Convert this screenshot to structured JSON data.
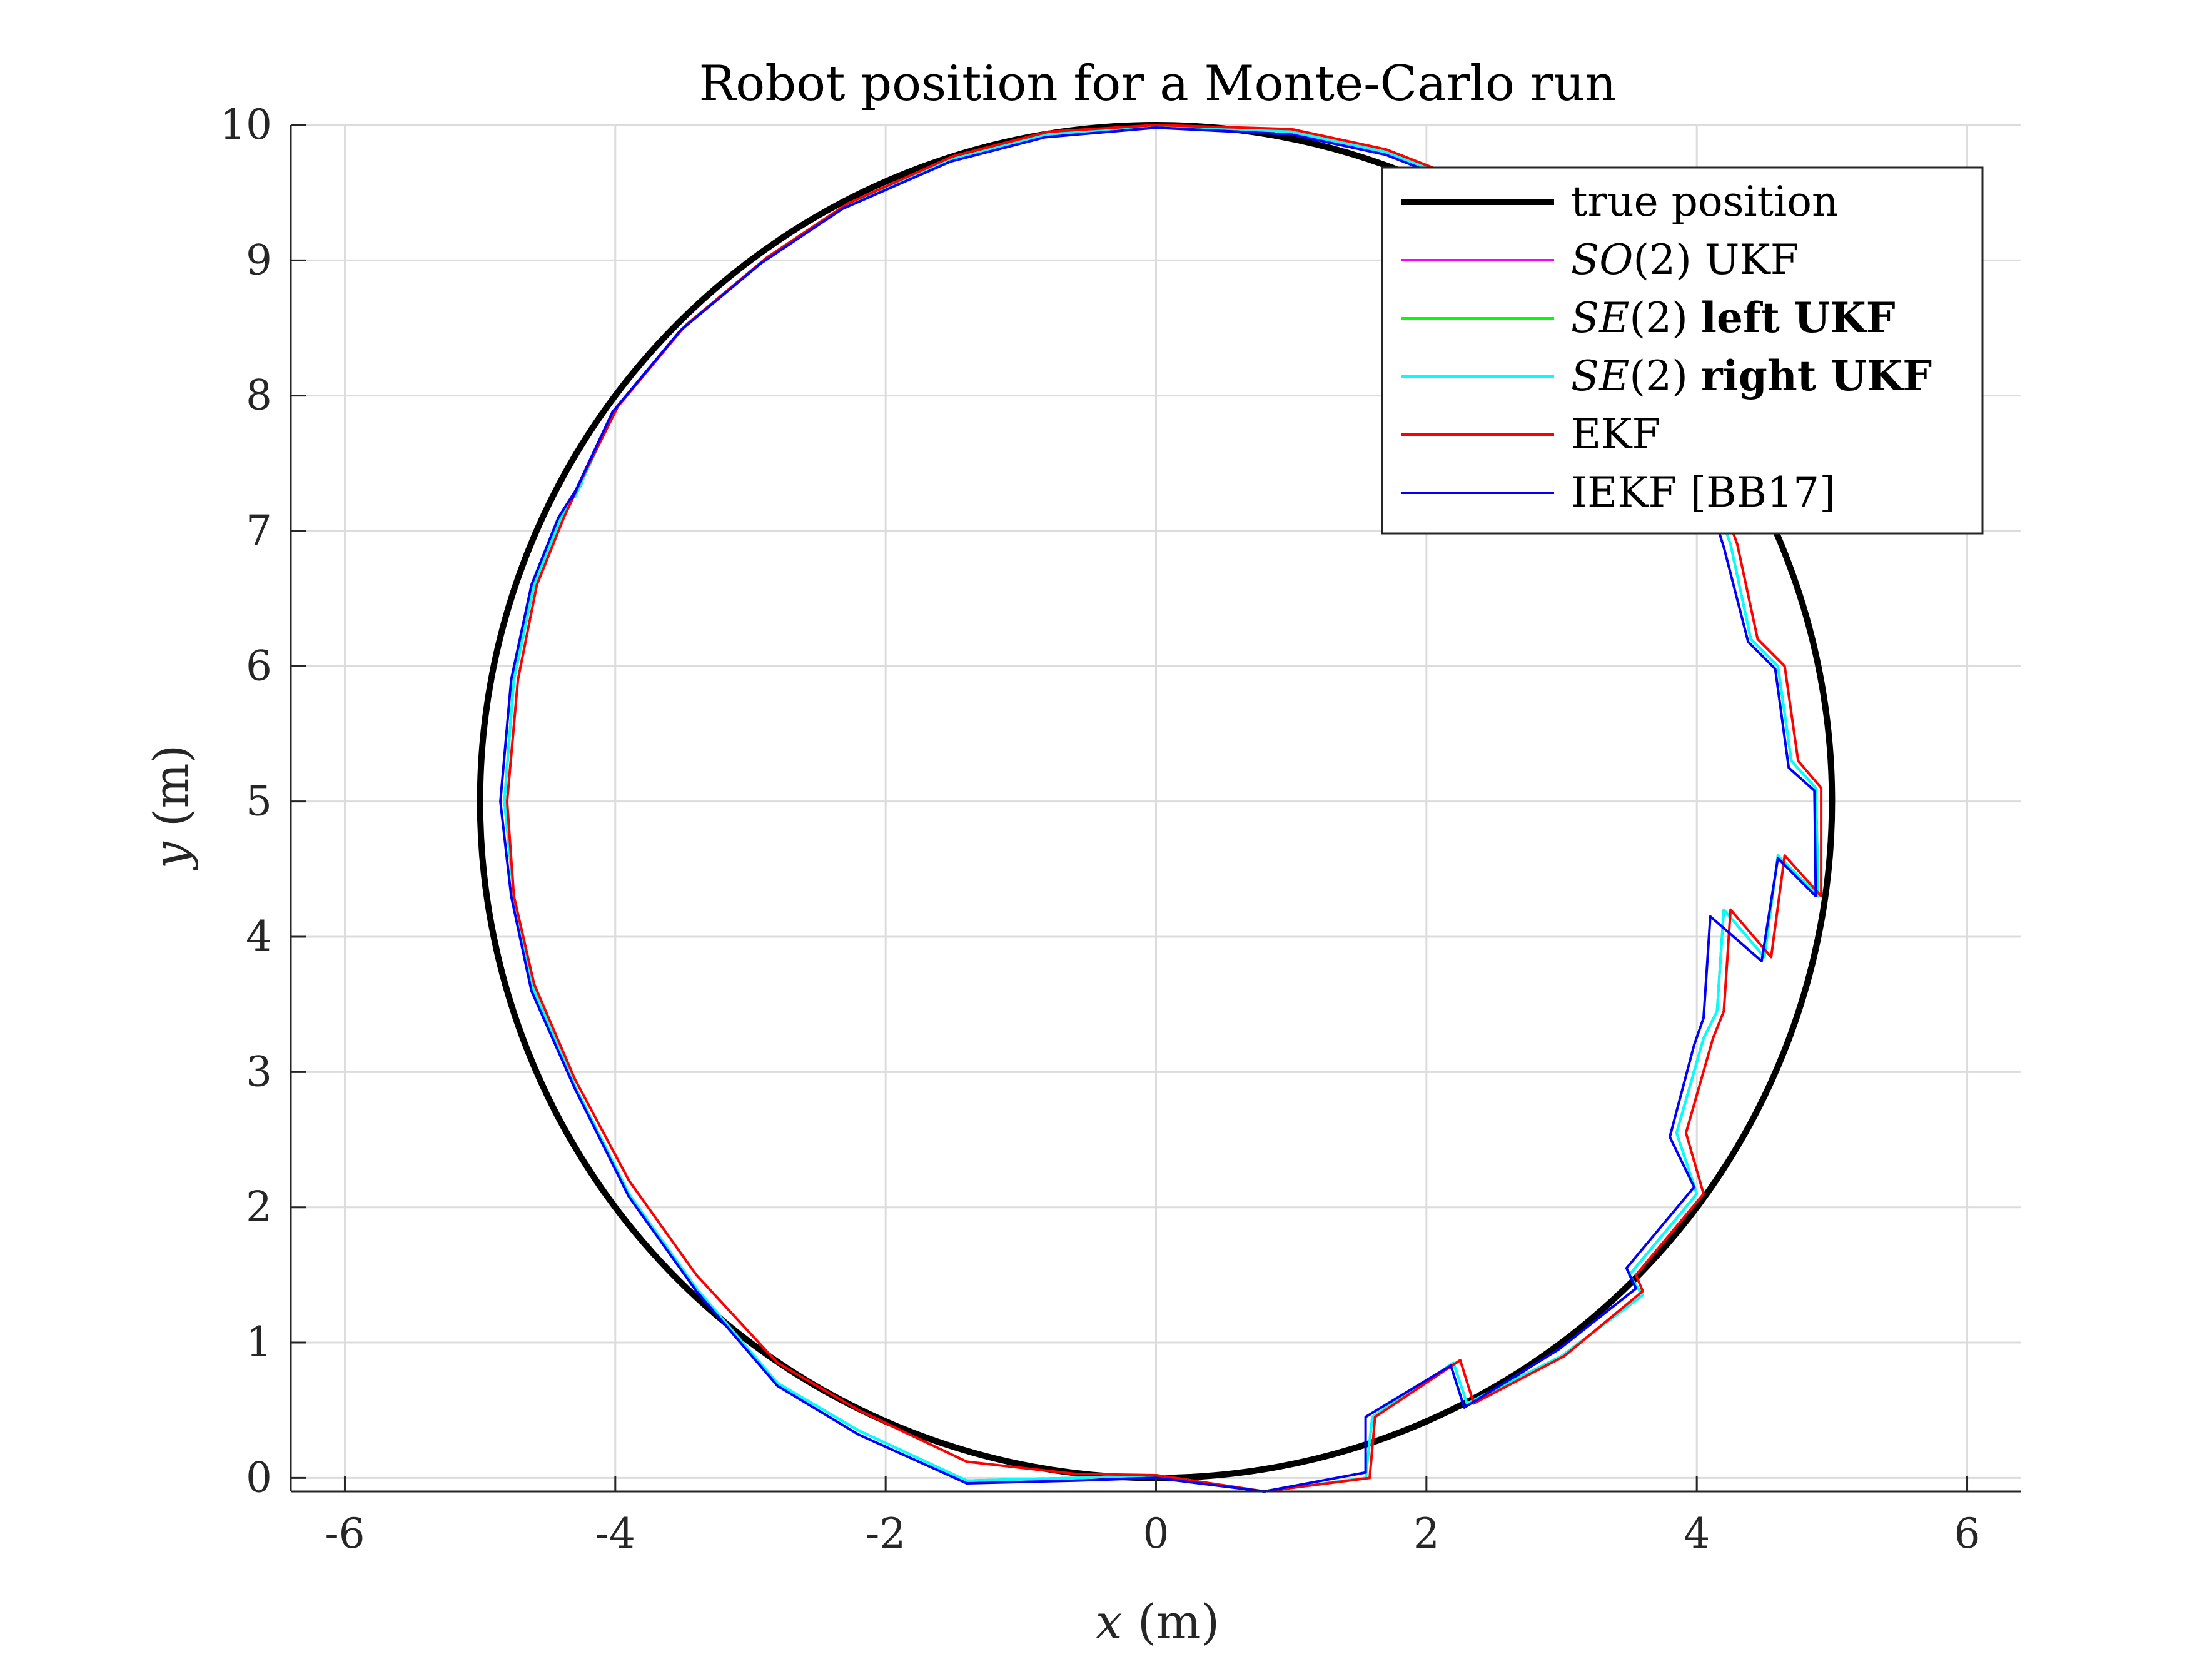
{
  "chart_data": {
    "type": "line",
    "title": "Robot position for a Monte-Carlo run",
    "xlabel": {
      "var": "x",
      "unit": " (m)"
    },
    "ylabel": {
      "var": "y",
      "unit": " (m)"
    },
    "xlim": [
      -6.4,
      6.4
    ],
    "ylim": [
      -0.1,
      10.0
    ],
    "xticks": [
      -6,
      -4,
      -2,
      0,
      2,
      4,
      6
    ],
    "yticks": [
      0,
      1,
      2,
      3,
      4,
      5,
      6,
      7,
      8,
      9,
      10
    ],
    "grid": true,
    "legend_position": "top-right",
    "series": [
      {
        "name": "true position",
        "legend": [
          {
            "text": "true position",
            "style": "normal"
          }
        ],
        "color": "#000000",
        "kind": "circle",
        "center": [
          0,
          5
        ],
        "radius": 5
      },
      {
        "name": "SO(2) UKF",
        "legend": [
          {
            "text": "SO",
            "style": "italic"
          },
          {
            "text": "(2) UKF",
            "style": "normal"
          }
        ],
        "color": "#ff00ff",
        "kind": "path",
        "points": [
          [
            0.0,
            0.02
          ],
          [
            -0.6,
            0.0
          ],
          [
            -1.4,
            -0.02
          ],
          [
            -2.2,
            0.35
          ],
          [
            -2.8,
            0.7
          ],
          [
            -3.4,
            1.4
          ],
          [
            -3.9,
            2.1
          ],
          [
            -4.3,
            2.9
          ],
          [
            -4.6,
            3.6
          ],
          [
            -4.75,
            4.3
          ],
          [
            -4.82,
            5.0
          ],
          [
            -4.75,
            5.9
          ],
          [
            -4.6,
            6.6
          ],
          [
            -4.4,
            7.1
          ],
          [
            -4.25,
            7.35
          ],
          [
            -4.3,
            7.25
          ],
          [
            -4.0,
            7.9
          ],
          [
            -3.5,
            8.5
          ],
          [
            -2.9,
            9.0
          ],
          [
            -2.3,
            9.4
          ],
          [
            -1.5,
            9.75
          ],
          [
            -0.8,
            9.93
          ],
          [
            0.0,
            10.0
          ],
          [
            1.0,
            9.95
          ],
          [
            1.7,
            9.8
          ],
          [
            3.5,
            9.1
          ],
          [
            4.25,
            6.9
          ],
          [
            4.4,
            6.2
          ],
          [
            4.6,
            6.0
          ],
          [
            4.7,
            5.3
          ],
          [
            4.88,
            5.1
          ],
          [
            4.9,
            4.3
          ],
          [
            4.6,
            4.6
          ],
          [
            4.5,
            3.85
          ],
          [
            4.2,
            4.2
          ],
          [
            4.15,
            3.45
          ],
          [
            4.05,
            3.25
          ],
          [
            3.85,
            2.55
          ],
          [
            4.0,
            2.1
          ],
          [
            3.5,
            1.5
          ],
          [
            3.6,
            1.35
          ],
          [
            3.0,
            0.9
          ],
          [
            2.3,
            0.55
          ],
          [
            2.2,
            0.85
          ],
          [
            1.6,
            0.45
          ],
          [
            1.55,
            0.0
          ],
          [
            0.8,
            -0.1
          ],
          [
            0.0,
            0.02
          ]
        ]
      },
      {
        "name": "SE(2) left UKF",
        "legend": [
          {
            "text": "SE",
            "style": "italic"
          },
          {
            "text": "(2) ",
            "style": "normal"
          },
          {
            "text": "left UKF",
            "style": "bold"
          }
        ],
        "color": "#00ff00",
        "kind": "path",
        "points": [
          [
            0.0,
            0.02
          ],
          [
            -0.6,
            0.0
          ],
          [
            -1.4,
            -0.02
          ],
          [
            -2.2,
            0.35
          ],
          [
            -2.8,
            0.7
          ],
          [
            -3.4,
            1.4
          ],
          [
            -3.9,
            2.1
          ],
          [
            -4.3,
            2.9
          ],
          [
            -4.6,
            3.6
          ],
          [
            -4.75,
            4.3
          ],
          [
            -4.82,
            5.0
          ],
          [
            -4.75,
            5.9
          ],
          [
            -4.6,
            6.6
          ],
          [
            -4.4,
            7.1
          ],
          [
            -4.25,
            7.35
          ],
          [
            -4.3,
            7.25
          ],
          [
            -4.0,
            7.9
          ],
          [
            -3.5,
            8.5
          ],
          [
            -2.9,
            9.0
          ],
          [
            -2.3,
            9.4
          ],
          [
            -1.5,
            9.75
          ],
          [
            -0.8,
            9.93
          ],
          [
            0.0,
            10.0
          ],
          [
            1.0,
            9.95
          ],
          [
            1.7,
            9.8
          ],
          [
            3.5,
            9.1
          ],
          [
            4.25,
            6.9
          ],
          [
            4.4,
            6.2
          ],
          [
            4.6,
            6.0
          ],
          [
            4.7,
            5.3
          ],
          [
            4.88,
            5.1
          ],
          [
            4.9,
            4.3
          ],
          [
            4.6,
            4.6
          ],
          [
            4.5,
            3.85
          ],
          [
            4.2,
            4.2
          ],
          [
            4.15,
            3.45
          ],
          [
            4.05,
            3.25
          ],
          [
            3.85,
            2.55
          ],
          [
            4.0,
            2.1
          ],
          [
            3.5,
            1.5
          ],
          [
            3.6,
            1.35
          ],
          [
            3.0,
            0.9
          ],
          [
            2.3,
            0.55
          ],
          [
            2.2,
            0.85
          ],
          [
            1.6,
            0.45
          ],
          [
            1.55,
            0.0
          ],
          [
            0.8,
            -0.1
          ],
          [
            0.0,
            0.02
          ]
        ]
      },
      {
        "name": "SE(2) right UKF",
        "legend": [
          {
            "text": "SE",
            "style": "italic"
          },
          {
            "text": "(2) ",
            "style": "normal"
          },
          {
            "text": "right UKF",
            "style": "bold"
          }
        ],
        "color": "#00ffff",
        "kind": "path",
        "points": [
          [
            0.0,
            0.02
          ],
          [
            -0.6,
            0.0
          ],
          [
            -1.4,
            -0.02
          ],
          [
            -2.2,
            0.35
          ],
          [
            -2.8,
            0.7
          ],
          [
            -3.4,
            1.4
          ],
          [
            -3.9,
            2.1
          ],
          [
            -4.3,
            2.9
          ],
          [
            -4.6,
            3.6
          ],
          [
            -4.75,
            4.3
          ],
          [
            -4.82,
            5.0
          ],
          [
            -4.75,
            5.9
          ],
          [
            -4.6,
            6.6
          ],
          [
            -4.4,
            7.1
          ],
          [
            -4.25,
            7.35
          ],
          [
            -4.3,
            7.25
          ],
          [
            -4.0,
            7.9
          ],
          [
            -3.5,
            8.5
          ],
          [
            -2.9,
            9.0
          ],
          [
            -2.3,
            9.4
          ],
          [
            -1.5,
            9.75
          ],
          [
            -0.8,
            9.93
          ],
          [
            0.0,
            10.0
          ],
          [
            1.0,
            9.95
          ],
          [
            1.7,
            9.8
          ],
          [
            3.5,
            9.1
          ],
          [
            4.25,
            6.9
          ],
          [
            4.4,
            6.2
          ],
          [
            4.6,
            6.0
          ],
          [
            4.7,
            5.3
          ],
          [
            4.88,
            5.1
          ],
          [
            4.9,
            4.3
          ],
          [
            4.6,
            4.6
          ],
          [
            4.5,
            3.85
          ],
          [
            4.2,
            4.2
          ],
          [
            4.15,
            3.45
          ],
          [
            4.05,
            3.25
          ],
          [
            3.85,
            2.55
          ],
          [
            4.0,
            2.1
          ],
          [
            3.5,
            1.5
          ],
          [
            3.6,
            1.35
          ],
          [
            3.0,
            0.9
          ],
          [
            2.3,
            0.55
          ],
          [
            2.2,
            0.85
          ],
          [
            1.6,
            0.45
          ],
          [
            1.55,
            0.0
          ],
          [
            0.8,
            -0.1
          ],
          [
            0.0,
            0.02
          ]
        ]
      },
      {
        "name": "EKF",
        "legend": [
          {
            "text": "EKF",
            "style": "normal"
          }
        ],
        "color": "#ff0000",
        "kind": "path",
        "points": [
          [
            0.0,
            0.02
          ],
          [
            -0.6,
            0.03
          ],
          [
            -1.4,
            0.12
          ],
          [
            -2.2,
            0.5
          ],
          [
            -2.8,
            0.85
          ],
          [
            -3.4,
            1.5
          ],
          [
            -3.9,
            2.2
          ],
          [
            -4.3,
            2.95
          ],
          [
            -4.6,
            3.65
          ],
          [
            -4.75,
            4.3
          ],
          [
            -4.8,
            5.0
          ],
          [
            -4.72,
            5.9
          ],
          [
            -4.58,
            6.6
          ],
          [
            -4.38,
            7.1
          ],
          [
            -4.25,
            7.38
          ],
          [
            -4.3,
            7.28
          ],
          [
            -3.98,
            7.92
          ],
          [
            -3.48,
            8.52
          ],
          [
            -2.88,
            9.02
          ],
          [
            -2.28,
            9.42
          ],
          [
            -1.5,
            9.77
          ],
          [
            -0.8,
            9.95
          ],
          [
            0.0,
            10.0
          ],
          [
            1.0,
            9.97
          ],
          [
            1.7,
            9.82
          ],
          [
            3.5,
            9.12
          ],
          [
            4.3,
            6.9
          ],
          [
            4.45,
            6.2
          ],
          [
            4.65,
            6.0
          ],
          [
            4.75,
            5.3
          ],
          [
            4.92,
            5.1
          ],
          [
            4.92,
            4.3
          ],
          [
            4.65,
            4.6
          ],
          [
            4.55,
            3.85
          ],
          [
            4.25,
            4.2
          ],
          [
            4.2,
            3.45
          ],
          [
            4.12,
            3.25
          ],
          [
            3.92,
            2.55
          ],
          [
            4.05,
            2.1
          ],
          [
            3.55,
            1.5
          ],
          [
            3.6,
            1.38
          ],
          [
            3.02,
            0.9
          ],
          [
            2.35,
            0.55
          ],
          [
            2.25,
            0.87
          ],
          [
            1.62,
            0.45
          ],
          [
            1.58,
            0.0
          ],
          [
            0.8,
            -0.1
          ],
          [
            0.0,
            0.02
          ]
        ]
      },
      {
        "name": "IEKF [BB17]",
        "legend": [
          {
            "text": "IEKF [BB17]",
            "style": "normal"
          }
        ],
        "color": "#0000ff",
        "kind": "path",
        "points": [
          [
            0.0,
            0.0
          ],
          [
            -0.6,
            -0.02
          ],
          [
            -1.4,
            -0.04
          ],
          [
            -2.2,
            0.32
          ],
          [
            -2.8,
            0.68
          ],
          [
            -3.4,
            1.38
          ],
          [
            -3.9,
            2.08
          ],
          [
            -4.3,
            2.88
          ],
          [
            -4.62,
            3.6
          ],
          [
            -4.77,
            4.3
          ],
          [
            -4.85,
            5.0
          ],
          [
            -4.77,
            5.9
          ],
          [
            -4.62,
            6.6
          ],
          [
            -4.42,
            7.1
          ],
          [
            -4.28,
            7.32
          ],
          [
            -4.32,
            7.24
          ],
          [
            -4.02,
            7.88
          ],
          [
            -3.52,
            8.48
          ],
          [
            -2.92,
            8.98
          ],
          [
            -2.32,
            9.38
          ],
          [
            -1.52,
            9.73
          ],
          [
            -0.82,
            9.91
          ],
          [
            0.0,
            9.98
          ],
          [
            1.0,
            9.93
          ],
          [
            1.7,
            9.78
          ],
          [
            3.5,
            9.08
          ],
          [
            4.2,
            6.88
          ],
          [
            4.38,
            6.18
          ],
          [
            4.58,
            5.98
          ],
          [
            4.68,
            5.25
          ],
          [
            4.87,
            5.08
          ],
          [
            4.88,
            4.3
          ],
          [
            4.6,
            4.58
          ],
          [
            4.48,
            3.82
          ],
          [
            4.1,
            4.15
          ],
          [
            4.05,
            3.4
          ],
          [
            3.98,
            3.2
          ],
          [
            3.8,
            2.52
          ],
          [
            3.98,
            2.15
          ],
          [
            3.48,
            1.55
          ],
          [
            3.55,
            1.4
          ],
          [
            2.98,
            0.95
          ],
          [
            2.28,
            0.52
          ],
          [
            2.18,
            0.83
          ],
          [
            1.55,
            0.45
          ],
          [
            1.55,
            0.04
          ],
          [
            0.8,
            -0.1
          ],
          [
            0.0,
            0.0
          ]
        ]
      }
    ]
  }
}
